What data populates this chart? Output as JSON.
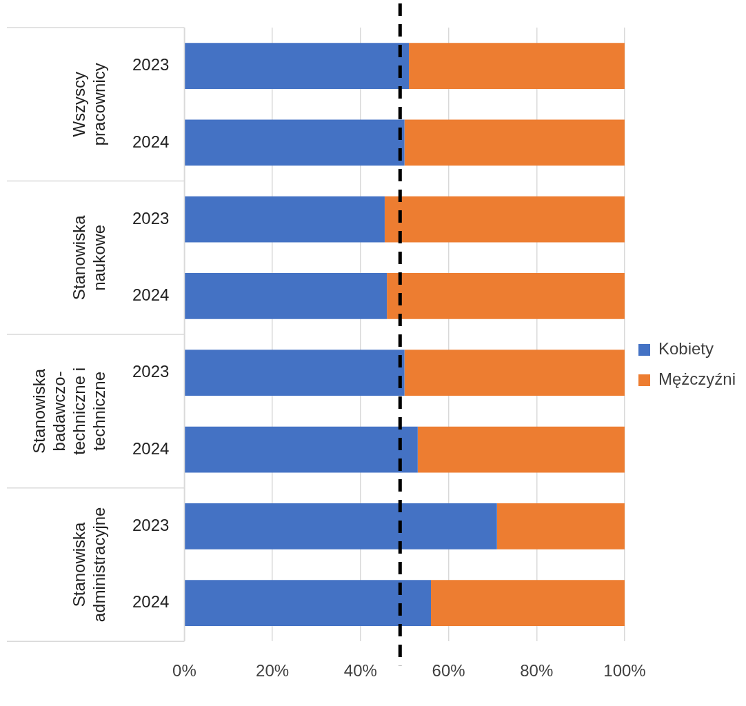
{
  "chart_data": {
    "type": "bar",
    "orientation": "horizontal",
    "stacked": true,
    "categories": [
      "2023",
      "2024",
      "2023",
      "2024",
      "2023",
      "2024",
      "2023",
      "2024"
    ],
    "series": [
      {
        "name": "Kobiety",
        "color": "#4472c4",
        "values": [
          51,
          50,
          45.5,
          46,
          50,
          53,
          71,
          56
        ]
      },
      {
        "name": "Mężczyźni",
        "color": "#ed7d31",
        "values": [
          49,
          50,
          54.5,
          54,
          50,
          47,
          29,
          44
        ]
      }
    ],
    "xlim": [
      0,
      100
    ],
    "xticks": [
      {
        "value": 0,
        "label": "0%"
      },
      {
        "value": 20,
        "label": "20%"
      },
      {
        "value": 40,
        "label": "40%"
      },
      {
        "value": 60,
        "label": "60%"
      },
      {
        "value": 80,
        "label": "80%"
      },
      {
        "value": 100,
        "label": "100%"
      }
    ],
    "grid": "x",
    "legend": "right",
    "ref_lines": [
      {
        "axis": "x",
        "value": 49,
        "color": "#000000",
        "line_style": "dashed"
      }
    ],
    "annotations": [
      "Wszyscy pracownicy",
      "Stanowiska naukowe",
      "Stanowiska badawczo-techniczne i techniczne",
      "Stanowiska administracyjne"
    ]
  }
}
